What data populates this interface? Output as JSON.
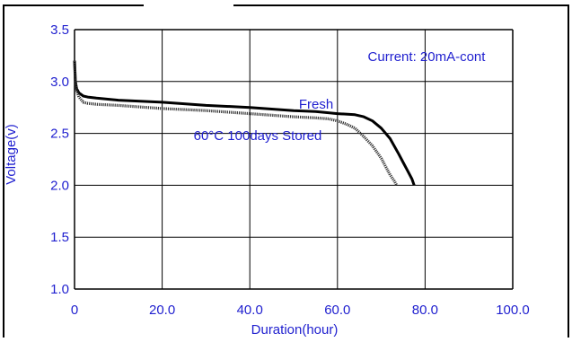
{
  "colors": {
    "text": "#1f1fcf",
    "frame": "#000000",
    "grid": "#000000",
    "fresh_line": "#000000",
    "stored_line": "#333333"
  },
  "chart_data": {
    "type": "line",
    "title": "",
    "xlabel": "Duration(hour)",
    "ylabel": "Voltage(v)",
    "xlim": [
      0,
      100
    ],
    "ylim": [
      1.0,
      3.5
    ],
    "x_ticks": [
      "0",
      "20.0",
      "40.0",
      "60.0",
      "80.0",
      "100.0"
    ],
    "y_ticks": [
      "1.0",
      "1.5",
      "2.0",
      "2.5",
      "3.0",
      "3.5"
    ],
    "grid": true,
    "annotation": "Current: 20mA-cont",
    "series": [
      {
        "name": "Fresh",
        "style": "solid",
        "x": [
          0,
          0.2,
          0.5,
          1,
          2,
          3,
          5,
          10,
          20,
          30,
          40,
          50,
          55,
          60,
          64,
          66,
          68,
          70,
          72,
          74,
          75,
          76,
          77,
          77.5
        ],
        "y": [
          3.2,
          3.0,
          2.93,
          2.89,
          2.86,
          2.85,
          2.84,
          2.82,
          2.8,
          2.77,
          2.75,
          2.72,
          2.71,
          2.69,
          2.68,
          2.66,
          2.62,
          2.55,
          2.45,
          2.3,
          2.22,
          2.14,
          2.06,
          2.0
        ]
      },
      {
        "name": "60°C 100days Stored",
        "style": "dotted",
        "x": [
          0,
          0.2,
          0.5,
          1,
          2,
          3,
          5,
          10,
          20,
          30,
          40,
          50,
          55,
          58,
          60,
          62,
          64,
          66,
          68,
          70,
          71,
          72,
          73,
          73.5
        ],
        "y": [
          3.2,
          2.98,
          2.91,
          2.85,
          2.8,
          2.79,
          2.78,
          2.77,
          2.74,
          2.72,
          2.69,
          2.66,
          2.65,
          2.64,
          2.62,
          2.59,
          2.55,
          2.47,
          2.38,
          2.26,
          2.18,
          2.1,
          2.04,
          2.0
        ]
      }
    ]
  }
}
